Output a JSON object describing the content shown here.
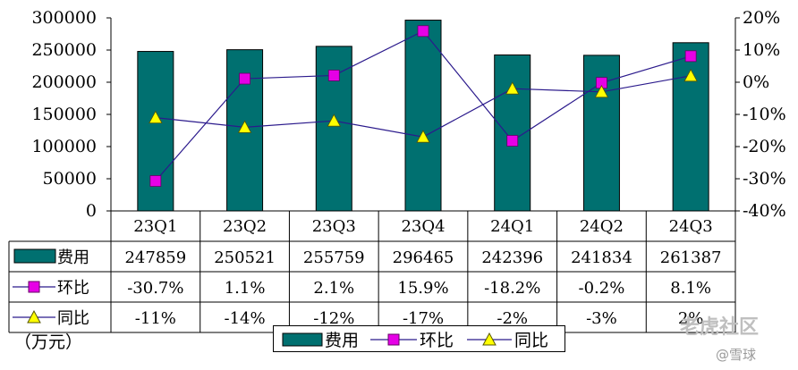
{
  "chart_data": {
    "type": "bar",
    "categories": [
      "23Q1",
      "23Q2",
      "23Q3",
      "23Q4",
      "24Q1",
      "24Q2",
      "24Q3"
    ],
    "left_axis": {
      "ylim": [
        0,
        300000
      ],
      "ticks": [
        "0",
        "50000",
        "100000",
        "150000",
        "200000",
        "250000",
        "300000"
      ]
    },
    "right_axis": {
      "ylim": [
        -40,
        20
      ],
      "ticks": [
        "-40%",
        "-30%",
        "-20%",
        "-10%",
        "0%",
        "10%",
        "20%"
      ]
    },
    "series": [
      {
        "name": "费用",
        "type": "bar",
        "axis": "left",
        "color": "#007070",
        "values": [
          247859,
          250521,
          255759,
          296465,
          242396,
          241834,
          261387
        ],
        "labels": [
          "247859",
          "250521",
          "255759",
          "296465",
          "242396",
          "241834",
          "261387"
        ]
      },
      {
        "name": "环比",
        "type": "line",
        "axis": "right",
        "color": "#e600e6",
        "line_color": "#2b1a8c",
        "marker": "square",
        "values": [
          -30.7,
          1.1,
          2.1,
          15.9,
          -18.2,
          -0.2,
          8.1
        ],
        "labels": [
          "-30.7%",
          "1.1%",
          "2.1%",
          "15.9%",
          "-18.2%",
          "-0.2%",
          "8.1%"
        ]
      },
      {
        "name": "同比",
        "type": "line",
        "axis": "right",
        "color": "#ffff00",
        "line_color": "#2b1a8c",
        "marker": "triangle",
        "values": [
          -11,
          -14,
          -12,
          -17,
          -2,
          -3,
          2
        ],
        "labels": [
          "-11%",
          "-14%",
          "-12%",
          "-17%",
          "-2%",
          "-3%",
          "2%"
        ]
      }
    ],
    "legend": "bottom",
    "grid": false,
    "data_table": true
  },
  "unit_label": "（万元）",
  "watermark": "老虎社区",
  "watermark2": "@雪球"
}
